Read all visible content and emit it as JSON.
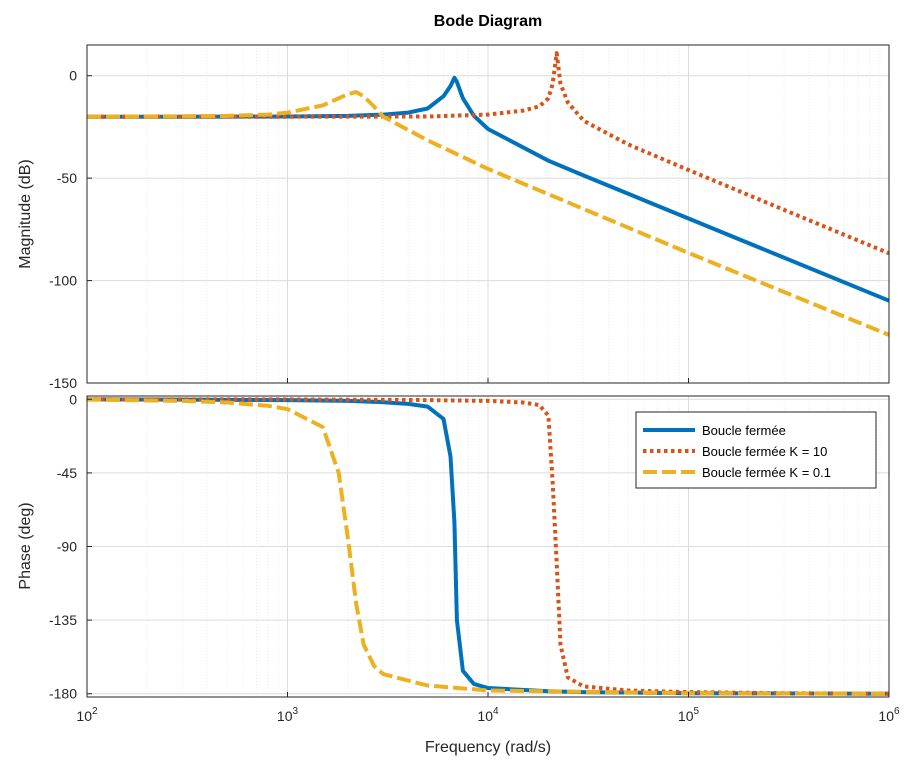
{
  "chart_data": {
    "type": "line",
    "title": "Bode Diagram",
    "xlabel": "Frequency  (rad/s)",
    "x_scale": "log",
    "xlim": [
      100,
      1000000
    ],
    "x_ticks": [
      {
        "base": "10",
        "exp": "2",
        "value": 100
      },
      {
        "base": "10",
        "exp": "3",
        "value": 1000
      },
      {
        "base": "10",
        "exp": "4",
        "value": 10000
      },
      {
        "base": "10",
        "exp": "5",
        "value": 100000
      },
      {
        "base": "10",
        "exp": "6",
        "value": 1000000
      }
    ],
    "grid": true,
    "legend_position": "top-right (phase panel)",
    "panels": [
      {
        "name": "magnitude",
        "ylabel": "Magnitude (dB)",
        "ylim": [
          -150,
          15
        ],
        "y_ticks": [
          "0",
          "-50",
          "-100",
          "-150"
        ],
        "y_tick_values": [
          0,
          -50,
          -100,
          -150
        ]
      },
      {
        "name": "phase",
        "ylabel": "Phase (deg)",
        "ylim": [
          -182,
          2
        ],
        "y_ticks": [
          "0",
          "-45",
          "-90",
          "-135",
          "-180"
        ],
        "y_tick_values": [
          0,
          -45,
          -90,
          -135,
          -180
        ]
      }
    ],
    "series": [
      {
        "name": "Boucle fermée",
        "color": "#0072BD",
        "style": "solid",
        "x": [
          100,
          300,
          1000,
          2000,
          3000,
          4000,
          5000,
          6000,
          6500,
          6800,
          7000,
          7500,
          8500,
          10000,
          20000,
          30000,
          100000,
          1000000
        ],
        "magnitude": [
          -20,
          -20,
          -19.9,
          -19.6,
          -19,
          -18,
          -16,
          -10,
          -5,
          -1,
          -3,
          -11,
          -19.5,
          -26,
          -41.5,
          -48.7,
          -69.7,
          -109.8
        ],
        "phase": [
          -0.05,
          -0.2,
          -0.5,
          -1,
          -1.8,
          -2.8,
          -4.5,
          -12,
          -35,
          -75,
          -135,
          -166,
          -174,
          -176.5,
          -178.5,
          -179,
          -179.7,
          -180
        ]
      },
      {
        "name": "Boucle fermée K = 10",
        "color": "#D95319",
        "style": "dotted",
        "x": [
          100,
          1000,
          5000,
          10000,
          15000,
          18000,
          20000,
          21000,
          22000,
          23000,
          25000,
          30000,
          50000,
          100000,
          300000,
          1000000
        ],
        "magnitude": [
          -20,
          -20,
          -19.9,
          -19,
          -17,
          -15,
          -11,
          -4,
          11,
          -4,
          -13,
          -22,
          -33.5,
          -46,
          -65.5,
          -86.7
        ],
        "phase": [
          -0.02,
          -0.1,
          -0.5,
          -1,
          -2,
          -3.5,
          -10,
          -50,
          -100,
          -150,
          -170,
          -175.5,
          -178,
          -179,
          -179.7,
          -180
        ]
      },
      {
        "name": "Boucle fermée K = 0.1",
        "color": "#EDB120",
        "style": "dashed",
        "x": [
          100,
          300,
          500,
          800,
          1000,
          1500,
          1800,
          2000,
          2200,
          2400,
          2700,
          3000,
          5000,
          10000,
          100000,
          1000000
        ],
        "magnitude": [
          -20,
          -19.8,
          -19.6,
          -19,
          -18,
          -14.5,
          -11,
          -9,
          -8,
          -10,
          -15,
          -20,
          -31.5,
          -45.5,
          -86.5,
          -126.5
        ],
        "phase": [
          -0.2,
          -1,
          -2,
          -4,
          -6,
          -17,
          -45,
          -85,
          -125,
          -150,
          -163,
          -168,
          -175,
          -178,
          -179.7,
          -180
        ]
      }
    ]
  }
}
